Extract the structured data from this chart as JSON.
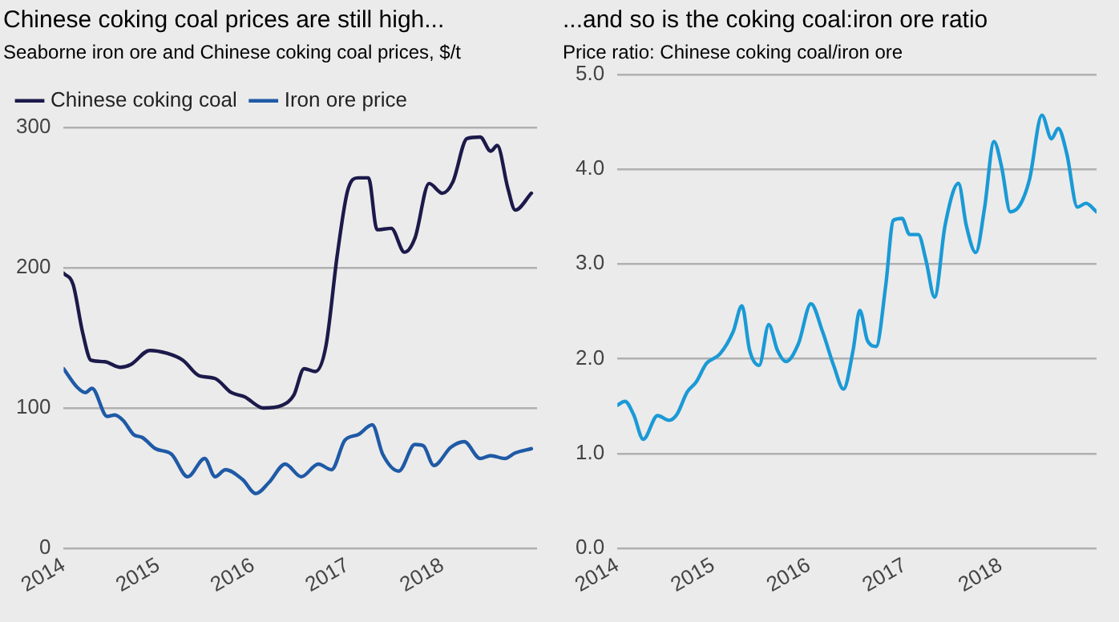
{
  "chart_data": [
    {
      "type": "line",
      "title": "Chinese coking coal prices are still high...",
      "subtitle": "Seaborne iron ore and Chinese coking coal prices, $/t",
      "xlim": [
        2014,
        2019
      ],
      "xticks": [
        2014,
        2015,
        2016,
        2017,
        2018
      ],
      "ylim": [
        0,
        300
      ],
      "yticks": [
        0,
        100,
        200,
        300
      ],
      "grid": "y",
      "legend": "top left",
      "series": [
        {
          "name": "Chinese coking coal",
          "color": "#1c1a4a",
          "x": [
            2014.0,
            2014.1,
            2014.2,
            2014.29,
            2014.43,
            2014.6,
            2014.71,
            2014.91,
            2015.09,
            2015.26,
            2015.43,
            2015.6,
            2015.77,
            2015.91,
            2016.11,
            2016.31,
            2016.43,
            2016.54,
            2016.66,
            2016.77,
            2016.89,
            2017.0,
            2017.11,
            2017.22,
            2017.31,
            2017.46,
            2017.6,
            2017.71,
            2017.86,
            2018.0,
            2018.11,
            2018.26,
            2018.4,
            2018.51,
            2018.58,
            2018.69,
            2018.77,
            2018.94
          ],
          "values": [
            196,
            188,
            154,
            134,
            133,
            129,
            131,
            141,
            139,
            134,
            123,
            121,
            111,
            108,
            100,
            102,
            109,
            128,
            126,
            144,
            209,
            255,
            264,
            264,
            227,
            228,
            211,
            221,
            260,
            253,
            261,
            292,
            293,
            283,
            287,
            257,
            241,
            253
          ]
        },
        {
          "name": "Iron ore price",
          "color": "#1f5aa6",
          "x": [
            2014.0,
            2014.14,
            2014.23,
            2014.3,
            2014.46,
            2014.54,
            2014.63,
            2014.74,
            2014.83,
            2014.97,
            2015.14,
            2015.31,
            2015.49,
            2015.6,
            2015.71,
            2015.89,
            2016.03,
            2016.17,
            2016.34,
            2016.51,
            2016.69,
            2016.83,
            2016.97,
            2017.11,
            2017.26,
            2017.37,
            2017.54,
            2017.71,
            2017.8,
            2017.91,
            2018.09,
            2018.23,
            2018.4,
            2018.51,
            2018.66,
            2018.77,
            2018.94
          ],
          "values": [
            128,
            115,
            111,
            114,
            94,
            95,
            91,
            81,
            79,
            71,
            67,
            51,
            64,
            51,
            56,
            49,
            39,
            47,
            60,
            51,
            60,
            56,
            77,
            81,
            88,
            67,
            55,
            74,
            73,
            59,
            72,
            76,
            64,
            66,
            64,
            68,
            71
          ]
        }
      ]
    },
    {
      "type": "line",
      "title": "...and so is the coking coal:iron ore ratio",
      "subtitle": "Price ratio: Chinese coking coal/iron ore",
      "xlim": [
        2014,
        2019
      ],
      "xticks": [
        2014,
        2015,
        2016,
        2017,
        2018
      ],
      "ylim": [
        0,
        5
      ],
      "yticks": [
        {
          "value": 0,
          "label": "0.0"
        },
        {
          "value": 1,
          "label": "1.0"
        },
        {
          "value": 2,
          "label": "2.0"
        },
        {
          "value": 3,
          "label": "3.0"
        },
        {
          "value": 4,
          "label": "4.0"
        },
        {
          "value": 5,
          "label": "5.0"
        }
      ],
      "grid": "y",
      "series": [
        {
          "color": "#1a9ad6",
          "x": [
            2014.0,
            2014.08,
            2014.17,
            2014.27,
            2014.42,
            2014.54,
            2014.62,
            2014.73,
            2014.82,
            2014.93,
            2015.07,
            2015.21,
            2015.3,
            2015.38,
            2015.48,
            2015.58,
            2015.67,
            2015.76,
            2015.89,
            2016.02,
            2016.14,
            2016.26,
            2016.36,
            2016.46,
            2016.53,
            2016.61,
            2016.7,
            2016.8,
            2016.88,
            2016.97,
            2017.05,
            2017.14,
            2017.22,
            2017.31,
            2017.42,
            2017.56,
            2017.64,
            2017.74,
            2017.83,
            2017.93,
            2018.01,
            2018.1,
            2018.2,
            2018.3,
            2018.43,
            2018.53,
            2018.6,
            2018.69,
            2018.8,
            2018.89,
            2019.0
          ],
          "values": [
            1.51,
            1.55,
            1.41,
            1.15,
            1.4,
            1.35,
            1.41,
            1.65,
            1.75,
            1.95,
            2.05,
            2.29,
            2.56,
            2.09,
            1.93,
            2.36,
            2.09,
            1.97,
            2.16,
            2.58,
            2.29,
            1.92,
            1.68,
            2.09,
            2.51,
            2.19,
            2.13,
            2.77,
            3.46,
            3.48,
            3.31,
            3.31,
            3.04,
            2.65,
            3.41,
            3.85,
            3.41,
            3.12,
            3.58,
            4.29,
            4.02,
            3.55,
            3.62,
            3.89,
            4.57,
            4.32,
            4.43,
            4.16,
            3.6,
            3.64,
            3.55
          ]
        }
      ]
    }
  ]
}
